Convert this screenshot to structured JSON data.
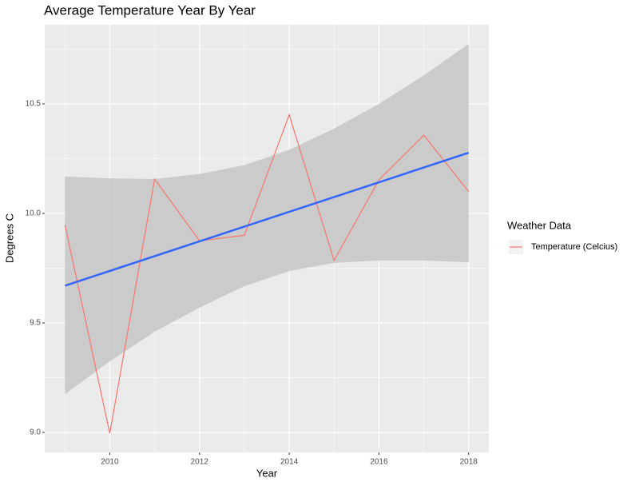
{
  "chart_data": {
    "type": "line",
    "title": "Average Temperature Year By Year",
    "x_label": "Year",
    "y_label": "Degrees C",
    "legend_title": "Weather Data",
    "x": [
      2009,
      2010,
      2011,
      2012,
      2013,
      2014,
      2015,
      2016,
      2017,
      2018
    ],
    "series": [
      {
        "name": "Temperature (Celcius)",
        "color": "#f8766d",
        "values": [
          9.949,
          8.996,
          10.157,
          9.875,
          9.9,
          10.45,
          9.785,
          10.153,
          10.357,
          10.1
        ]
      }
    ],
    "ribbon": {
      "color": "#c8c8c8",
      "upper": [
        10.168,
        10.16,
        10.157,
        10.18,
        10.22,
        10.29,
        10.387,
        10.5,
        10.63,
        10.774
      ],
      "lower": [
        9.175,
        9.325,
        9.46,
        9.57,
        9.668,
        9.737,
        9.774,
        9.785,
        9.785,
        9.777
      ]
    },
    "trend": {
      "x": [
        2009,
        2018
      ],
      "values": [
        9.67,
        10.277
      ],
      "color": "#3366ff"
    },
    "xlim": [
      2008.55,
      2018.45
    ],
    "ylim": [
      8.909,
      10.861
    ],
    "xticks": [
      2010,
      2012,
      2014,
      2016,
      2018
    ],
    "yticks": [
      {
        "value": 9,
        "label": "9.0"
      },
      9.5,
      {
        "value": 10,
        "label": "10.0"
      },
      10.5
    ],
    "grid": true,
    "legend_position": "right"
  }
}
